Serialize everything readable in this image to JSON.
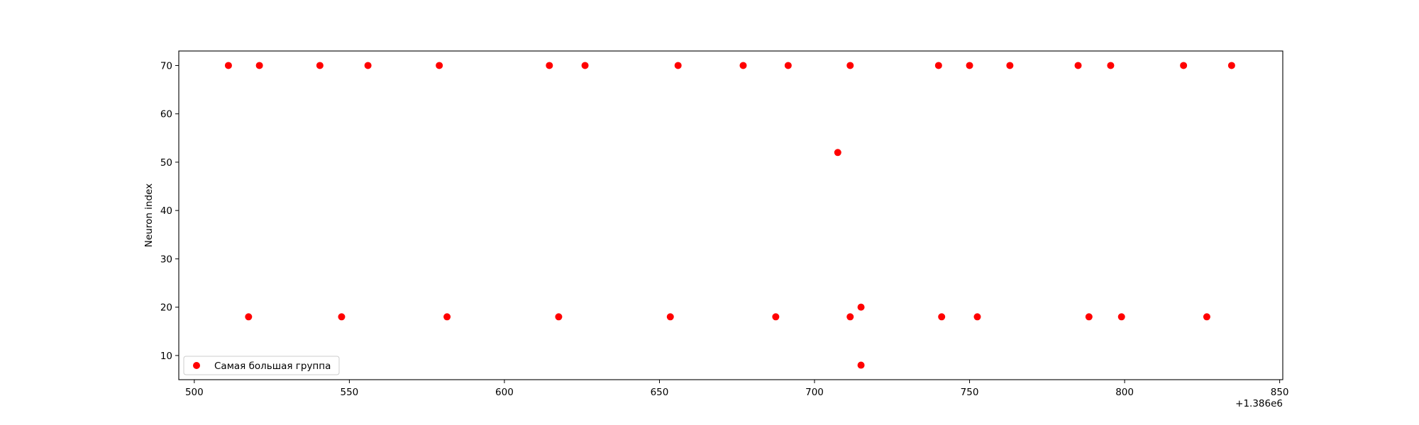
{
  "chart_data": {
    "type": "scatter",
    "title": "",
    "xlabel": "",
    "ylabel": "Neuron index",
    "x_offset_label": "+1.386e6",
    "xlim": [
      495,
      851
    ],
    "ylim": [
      5,
      73
    ],
    "xticks": [
      "500",
      "550",
      "600",
      "650",
      "700",
      "750",
      "800",
      "850"
    ],
    "yticks": [
      "10",
      "20",
      "30",
      "40",
      "50",
      "60",
      "70"
    ],
    "grid": false,
    "legend_position": "lower-left",
    "series": [
      {
        "name": "Самая большая группа",
        "color": "#ff0000",
        "points": [
          [
            511,
            70
          ],
          [
            521,
            70
          ],
          [
            540.5,
            70
          ],
          [
            556,
            70
          ],
          [
            579,
            70
          ],
          [
            614.5,
            70
          ],
          [
            626,
            70
          ],
          [
            656,
            70
          ],
          [
            677,
            70
          ],
          [
            691.5,
            70
          ],
          [
            711.5,
            70
          ],
          [
            740,
            70
          ],
          [
            750,
            70
          ],
          [
            763,
            70
          ],
          [
            785,
            70
          ],
          [
            795.5,
            70
          ],
          [
            819,
            70
          ],
          [
            834.5,
            70
          ],
          [
            707.5,
            52
          ],
          [
            715,
            20
          ],
          [
            517.5,
            18
          ],
          [
            547.5,
            18
          ],
          [
            581.5,
            18
          ],
          [
            617.5,
            18
          ],
          [
            653.5,
            18
          ],
          [
            687.5,
            18
          ],
          [
            711.5,
            18
          ],
          [
            741,
            18
          ],
          [
            752.5,
            18
          ],
          [
            788.5,
            18
          ],
          [
            799,
            18
          ],
          [
            826.5,
            18
          ],
          [
            715,
            8
          ]
        ]
      }
    ]
  }
}
